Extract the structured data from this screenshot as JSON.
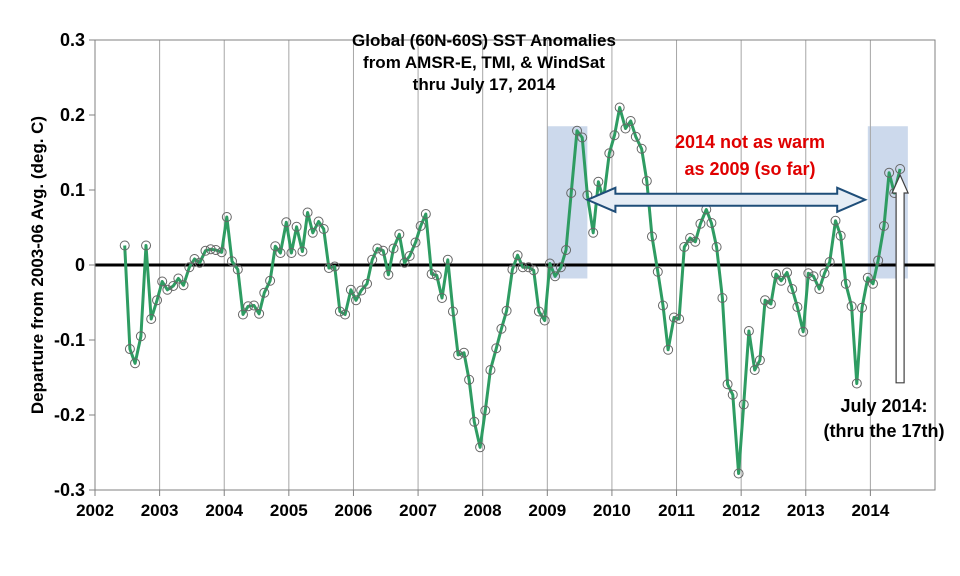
{
  "chart_data": {
    "type": "line",
    "title_lines": [
      "Global (60N-60S) SST Anomalies",
      "from AMSR-E, TMI, & WindSat",
      "thru July 17, 2014"
    ],
    "ylabel": "Departure from 2003-06 Avg. (deg. C)",
    "xlabel": "",
    "ylim": [
      -0.3,
      0.3
    ],
    "yticks": [
      -0.3,
      -0.2,
      -0.1,
      0,
      0.1,
      0.2,
      0.3
    ],
    "ytick_labels": [
      "-0.3",
      "-0.2",
      "-0.1",
      "0",
      "0.1",
      "0.2",
      "0.3"
    ],
    "xlim": [
      2002,
      2015
    ],
    "xticks": [
      2002,
      2003,
      2004,
      2005,
      2006,
      2007,
      2008,
      2009,
      2010,
      2011,
      2012,
      2013,
      2014
    ],
    "xtick_labels": [
      "2002",
      "2003",
      "2004",
      "2005",
      "2006",
      "2007",
      "2008",
      "2009",
      "2010",
      "2011",
      "2012",
      "2013",
      "2014"
    ],
    "grid": "vertical",
    "colors": {
      "line": "#2e9c62",
      "marker": "#666666",
      "highlight": "#ccd9ec",
      "arrow": "#1f4e79",
      "zero_line": "#000000"
    },
    "series": [
      {
        "x": [
          2002.46,
          2002.54,
          2002.62,
          2002.71,
          2002.79,
          2002.87,
          2002.96,
          2003.04,
          2003.12,
          2003.21,
          2003.29,
          2003.37,
          2003.46,
          2003.54,
          2003.62,
          2003.71,
          2003.79,
          2003.87,
          2003.96,
          2004.04,
          2004.12,
          2004.21,
          2004.29,
          2004.37,
          2004.46,
          2004.54,
          2004.62,
          2004.71,
          2004.79,
          2004.87,
          2004.96,
          2005.04,
          2005.12,
          2005.21,
          2005.29,
          2005.37,
          2005.46,
          2005.54,
          2005.62,
          2005.71,
          2005.79,
          2005.87,
          2005.96,
          2006.04,
          2006.12,
          2006.21,
          2006.29,
          2006.37,
          2006.46,
          2006.54,
          2006.62,
          2006.71,
          2006.79,
          2006.87,
          2006.96,
          2007.04,
          2007.12,
          2007.21,
          2007.29,
          2007.37,
          2007.46,
          2007.54,
          2007.62,
          2007.71,
          2007.79,
          2007.87,
          2007.96,
          2008.04,
          2008.12,
          2008.21,
          2008.29,
          2008.37,
          2008.46,
          2008.54,
          2008.62,
          2008.71,
          2008.79,
          2008.87,
          2008.96,
          2009.04,
          2009.12,
          2009.21,
          2009.29,
          2009.37,
          2009.46,
          2009.54,
          2009.62,
          2009.71,
          2009.79,
          2009.87,
          2009.96,
          2010.04,
          2010.12,
          2010.21,
          2010.29,
          2010.37,
          2010.46,
          2010.54,
          2010.62,
          2010.71,
          2010.79,
          2010.87,
          2010.96,
          2011.04,
          2011.12,
          2011.21,
          2011.29,
          2011.37,
          2011.46,
          2011.54,
          2011.62,
          2011.71,
          2011.79,
          2011.87,
          2011.96,
          2012.04,
          2012.12,
          2012.21,
          2012.29,
          2012.37,
          2012.46,
          2012.54,
          2012.62,
          2012.71,
          2012.79,
          2012.87,
          2012.96,
          2013.04,
          2013.12,
          2013.21,
          2013.29,
          2013.37,
          2013.46,
          2013.54,
          2013.62,
          2013.71,
          2013.79,
          2013.87,
          2013.96,
          2014.04,
          2014.12,
          2014.21,
          2014.29,
          2014.37,
          2014.46
        ],
        "values": [
          0.026,
          -0.112,
          -0.131,
          -0.095,
          0.026,
          -0.072,
          -0.047,
          -0.022,
          -0.033,
          -0.028,
          -0.018,
          -0.027,
          -0.003,
          0.008,
          0.003,
          0.019,
          0.021,
          0.02,
          0.017,
          0.064,
          0.005,
          -0.006,
          -0.066,
          -0.055,
          -0.054,
          -0.065,
          -0.037,
          -0.021,
          0.025,
          0.016,
          0.057,
          0.016,
          0.051,
          0.018,
          0.07,
          0.043,
          0.058,
          0.048,
          -0.004,
          -0.002,
          -0.062,
          -0.066,
          -0.033,
          -0.047,
          -0.034,
          -0.025,
          0.007,
          0.022,
          0.019,
          -0.013,
          0.022,
          0.041,
          0.003,
          0.012,
          0.03,
          0.052,
          0.068,
          -0.012,
          -0.014,
          -0.044,
          0.007,
          -0.062,
          -0.12,
          -0.117,
          -0.153,
          -0.209,
          -0.243,
          -0.194,
          -0.14,
          -0.111,
          -0.085,
          -0.061,
          -0.006,
          0.013,
          -0.003,
          -0.003,
          -0.007,
          -0.062,
          -0.074,
          0.002,
          -0.015,
          -0.003,
          0.02,
          0.096,
          0.179,
          0.17,
          0.093,
          0.043,
          0.111,
          0.087,
          0.149,
          0.173,
          0.21,
          0.182,
          0.192,
          0.171,
          0.155,
          0.112,
          0.038,
          -0.009,
          -0.054,
          -0.113,
          -0.07,
          -0.072,
          0.024,
          0.036,
          0.031,
          0.055,
          0.074,
          0.056,
          0.024,
          -0.044,
          -0.159,
          -0.173,
          -0.278,
          -0.186,
          -0.088,
          -0.14,
          -0.127,
          -0.047,
          -0.052,
          -0.012,
          -0.021,
          -0.01,
          -0.032,
          -0.056,
          -0.089,
          -0.011,
          -0.015,
          -0.032,
          -0.011,
          0.004,
          0.059,
          0.039,
          -0.025,
          -0.055,
          -0.158,
          -0.057,
          -0.017,
          -0.025,
          0.006,
          0.052,
          0.123,
          0.096,
          0.128
        ]
      }
    ],
    "highlight_regions": [
      {
        "x0": 2009.0,
        "x1": 2009.62,
        "y0": -0.018,
        "y1": 0.185
      },
      {
        "x0": 2013.96,
        "x1": 2014.58,
        "y0": -0.018,
        "y1": 0.185
      }
    ],
    "annotations": {
      "comparison_lines": [
        "2014 not as warm",
        "as 2009 (so far)"
      ],
      "month_lines": [
        "July 2014:",
        "(thru the 17th)"
      ]
    }
  }
}
